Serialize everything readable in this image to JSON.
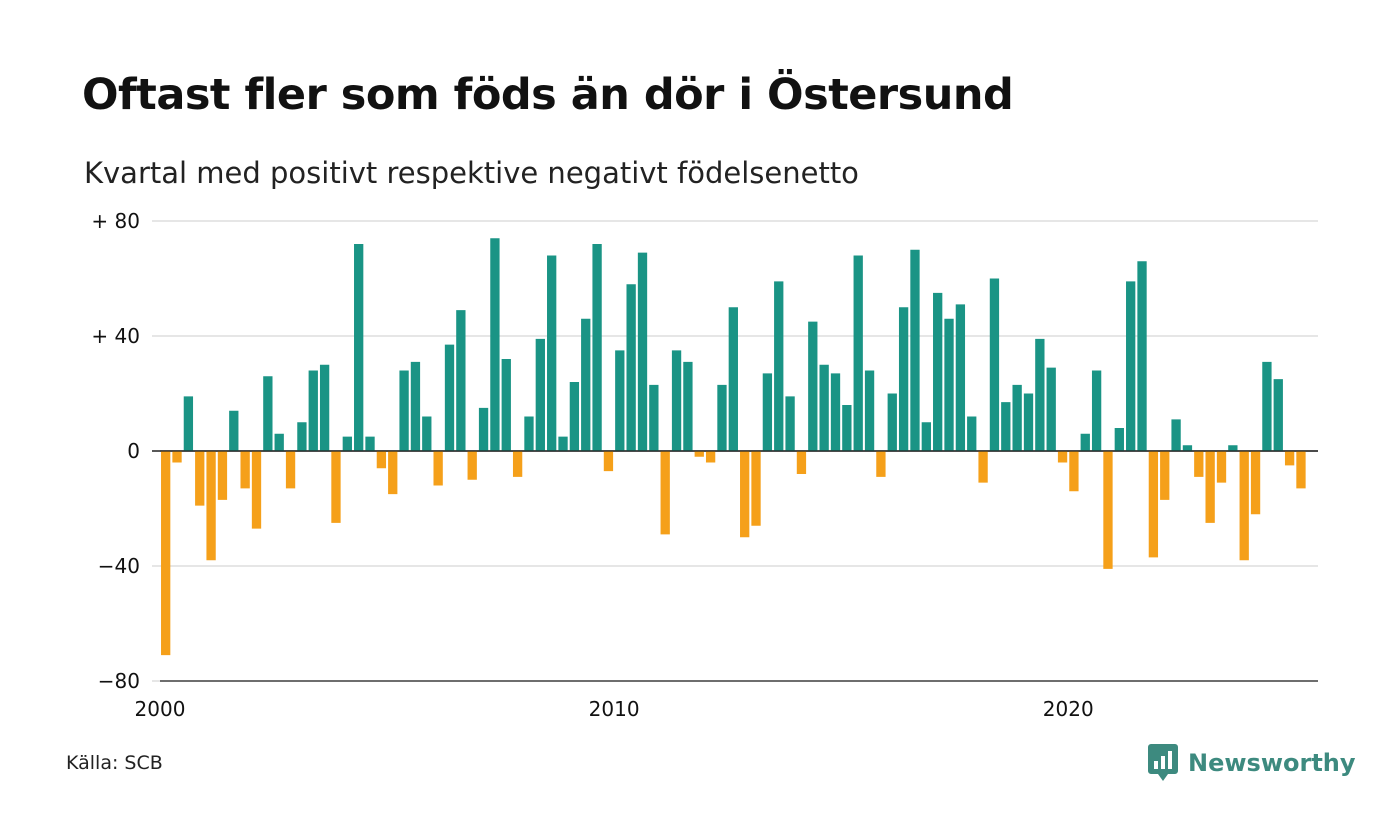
{
  "title": "Oftast fler som föds än dör i Östersund",
  "subtitle": "Kvartal med positivt respektive negativt födelsenetto",
  "source": "Källa: SCB",
  "brand": {
    "name": "Newsworthy",
    "icon": "newsworthy-logo-icon"
  },
  "colors": {
    "positive": "#1a9485",
    "negative": "#f5a01a",
    "grid": "#dddddd",
    "brand": "#3d8a7f"
  },
  "chart_data": {
    "type": "bar",
    "title": "Oftast fler som föds än dör i Östersund",
    "subtitle": "Kvartal med positivt respektive negativt födelsenetto",
    "ylim": [
      -80,
      80
    ],
    "yticks": [
      80,
      40,
      0,
      -40,
      -80
    ],
    "ytick_labels": [
      "+ 80",
      "+ 40",
      "0",
      "−40",
      "−80"
    ],
    "xlim": [
      2000,
      2025.5
    ],
    "xticks": [
      2000,
      2010,
      2020
    ],
    "xtick_labels": [
      "2000",
      "2010",
      "2020"
    ],
    "grid": true,
    "start": "2000 Q1",
    "frequency": "quarterly",
    "values": [
      -71,
      -4,
      19,
      -19,
      -38,
      -17,
      14,
      -13,
      -27,
      26,
      6,
      -13,
      10,
      28,
      30,
      -25,
      5,
      72,
      5,
      -6,
      -15,
      28,
      31,
      12,
      -12,
      37,
      49,
      -10,
      15,
      74,
      32,
      -9,
      12,
      39,
      68,
      5,
      24,
      46,
      72,
      -7,
      35,
      58,
      69,
      23,
      -29,
      35,
      31,
      -2,
      -4,
      23,
      50,
      -30,
      -26,
      27,
      59,
      19,
      -8,
      45,
      30,
      27,
      16,
      68,
      28,
      -9,
      20,
      50,
      70,
      10,
      55,
      46,
      51,
      12,
      -11,
      60,
      17,
      23,
      20,
      39,
      29,
      -4,
      -14,
      6,
      28,
      -41,
      8,
      59,
      66,
      -37,
      -17,
      11,
      2,
      -9,
      -25,
      -11,
      2,
      -38,
      -22,
      31,
      25,
      -5,
      -13
    ]
  }
}
